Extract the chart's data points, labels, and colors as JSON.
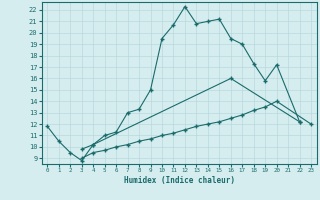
{
  "title": "",
  "xlabel": "Humidex (Indice chaleur)",
  "bg_color": "#d6edf0",
  "line_color": "#1a6b6b",
  "grid_color": "#b8d8de",
  "xlim": [
    -0.5,
    23.5
  ],
  "ylim": [
    8.5,
    22.7
  ],
  "yticks": [
    9,
    10,
    11,
    12,
    13,
    14,
    15,
    16,
    17,
    18,
    19,
    20,
    21,
    22
  ],
  "xticks": [
    0,
    1,
    2,
    3,
    4,
    5,
    6,
    7,
    8,
    9,
    10,
    11,
    12,
    13,
    14,
    15,
    16,
    17,
    18,
    19,
    20,
    21,
    22,
    23
  ],
  "series": [
    {
      "x": [
        0,
        1,
        2,
        3,
        4,
        5,
        6,
        7,
        8,
        9,
        10,
        11,
        12,
        13,
        14,
        15,
        16,
        17,
        18,
        19,
        20,
        22
      ],
      "y": [
        11.8,
        10.5,
        9.5,
        8.8,
        10.2,
        11.0,
        11.3,
        13.0,
        13.3,
        15.0,
        19.5,
        20.7,
        22.3,
        20.8,
        21.0,
        21.2,
        19.5,
        19.0,
        17.3,
        15.8,
        17.2,
        12.2
      ]
    },
    {
      "x": [
        3,
        4,
        16,
        22
      ],
      "y": [
        9.8,
        10.2,
        16.0,
        12.2
      ]
    },
    {
      "x": [
        3,
        4,
        5,
        6,
        7,
        8,
        9,
        10,
        11,
        12,
        13,
        14,
        15,
        16,
        17,
        18,
        19,
        20,
        23
      ],
      "y": [
        9.0,
        9.5,
        9.7,
        10.0,
        10.2,
        10.5,
        10.7,
        11.0,
        11.2,
        11.5,
        11.8,
        12.0,
        12.2,
        12.5,
        12.8,
        13.2,
        13.5,
        14.0,
        12.0
      ]
    }
  ]
}
